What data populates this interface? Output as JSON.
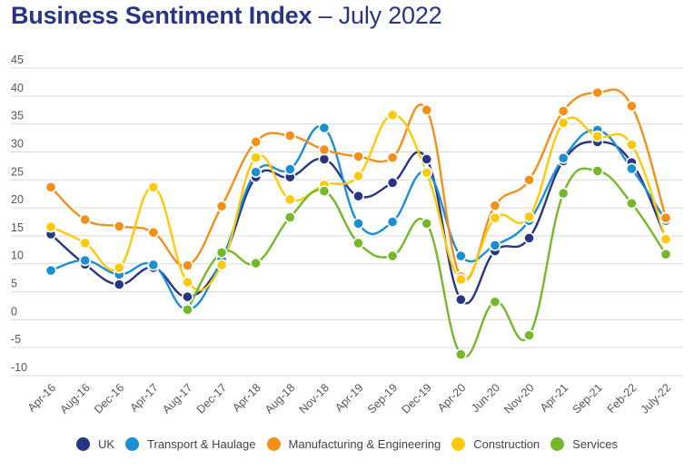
{
  "title": {
    "bold": "Business Sentiment Index",
    "rest": " – July 2022"
  },
  "chart_data": {
    "type": "line",
    "title": "Business Sentiment Index – July 2022",
    "xlabel": "",
    "ylabel": "",
    "ylim": [
      -10,
      45
    ],
    "yticks": [
      45,
      40,
      35,
      30,
      25,
      20,
      15,
      10,
      5,
      0,
      -5,
      -10
    ],
    "grid": true,
    "smooth": true,
    "legend_position": "bottom",
    "categories": [
      "Apr-16",
      "Aug-16",
      "Dec-16",
      "Apr-17",
      "Aug-17",
      "Dec-17",
      "Apr-18",
      "Aug-18",
      "Nov-18",
      "Apr-19",
      "Sep-19",
      "Dec-19",
      "Apr-20",
      "Jun-20",
      "Nov-20",
      "Apr-21",
      "Sep-21",
      "Feb-22",
      "July-22"
    ],
    "series": [
      {
        "name": "UK",
        "color": "#283583",
        "values": [
          15.3,
          9.9,
          6.3,
          9.3,
          4.1,
          10.4,
          25.5,
          25.5,
          28.7,
          22.1,
          24.5,
          28.7,
          3.6,
          12.3,
          14.6,
          28.4,
          31.8,
          28.1,
          14.6
        ]
      },
      {
        "name": "Transport & Haulage",
        "color": "#1b8fd2",
        "values": [
          8.8,
          10.6,
          8.1,
          9.8,
          1.8,
          10.8,
          26.4,
          26.9,
          34.3,
          17.2,
          17.5,
          26.4,
          11.4,
          13.3,
          17.7,
          28.9,
          33.9,
          27.0,
          17.7
        ]
      },
      {
        "name": "Manufacturing & Engineering",
        "color": "#f39019",
        "values": [
          23.7,
          17.9,
          16.7,
          15.6,
          9.7,
          20.3,
          31.8,
          32.9,
          30.4,
          29.2,
          29.0,
          37.5,
          7.7,
          20.4,
          25.0,
          37.3,
          40.6,
          38.2,
          18.2
        ]
      },
      {
        "name": "Construction",
        "color": "#fdca0a",
        "values": [
          16.6,
          13.7,
          9.3,
          23.7,
          6.7,
          9.8,
          29.0,
          21.5,
          24.1,
          25.7,
          36.6,
          26.3,
          7.2,
          18.2,
          18.4,
          35.2,
          32.8,
          31.3,
          14.4
        ]
      },
      {
        "name": "Services",
        "color": "#76b82a",
        "values": [
          null,
          null,
          null,
          null,
          1.8,
          12.0,
          10.1,
          18.3,
          23.0,
          13.7,
          11.4,
          17.2,
          -6.2,
          3.2,
          -2.8,
          22.6,
          26.6,
          20.8,
          11.7
        ]
      }
    ]
  }
}
